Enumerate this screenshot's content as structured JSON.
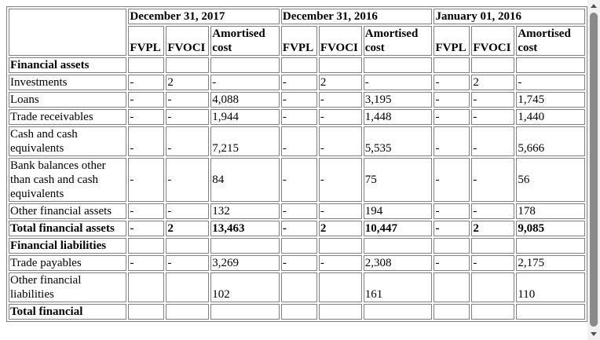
{
  "periods": [
    "December 31, 2017",
    "December 31, 2016",
    "January 01, 2016"
  ],
  "sub_headers": {
    "fvpl": "FVPL",
    "fvoci": "FVOCI",
    "amortised_cost": "Amortised cost"
  },
  "sections": {
    "assets": "Financial assets",
    "liabilities": "Financial liabilities",
    "total_liabilities": "Total financial"
  },
  "rows": {
    "investments": {
      "label": "Investments",
      "values": [
        "-",
        "2",
        "-",
        "-",
        "2",
        "-",
        "-",
        "2",
        "-"
      ]
    },
    "loans": {
      "label": "Loans",
      "values": [
        "-",
        "-",
        "4,088",
        "-",
        "-",
        "3,195",
        "-",
        "-",
        "1,745"
      ]
    },
    "trade_receivables": {
      "label": "Trade receivables",
      "values": [
        "-",
        "-",
        "1,944",
        "-",
        "-",
        "1,448",
        "-",
        "-",
        "1,440"
      ]
    },
    "cash": {
      "label": "Cash and cash equivalents",
      "values": [
        "-",
        "-",
        "7,215",
        "-",
        "-",
        "5,535",
        "-",
        "-",
        "5,666"
      ]
    },
    "bank_balances": {
      "label": "Bank balances other than cash and cash equivalents",
      "values": [
        "-",
        "-",
        "84",
        "-",
        "-",
        "75",
        "-",
        "-",
        "56"
      ]
    },
    "other_assets": {
      "label": "Other financial assets",
      "values": [
        "-",
        "-",
        "132",
        "-",
        "-",
        "194",
        "-",
        "-",
        "178"
      ]
    },
    "total_assets": {
      "label": "Total financial assets",
      "values": [
        "-",
        "2",
        "13,463",
        "-",
        "2",
        "10,447",
        "-",
        "2",
        "9,085"
      ]
    },
    "trade_payables": {
      "label": "Trade payables",
      "values": [
        "-",
        "-",
        "3,269",
        "-",
        "-",
        "2,308",
        "-",
        "-",
        "2,175"
      ]
    },
    "other_liabilities": {
      "label": "Other financial liabilities",
      "values": [
        "",
        "",
        "102",
        "",
        "",
        "161",
        "",
        "",
        "110"
      ]
    }
  },
  "scrollbar": {
    "up_icon": "triangle-up-icon",
    "down_icon": "triangle-down-icon",
    "position": 0.0
  }
}
